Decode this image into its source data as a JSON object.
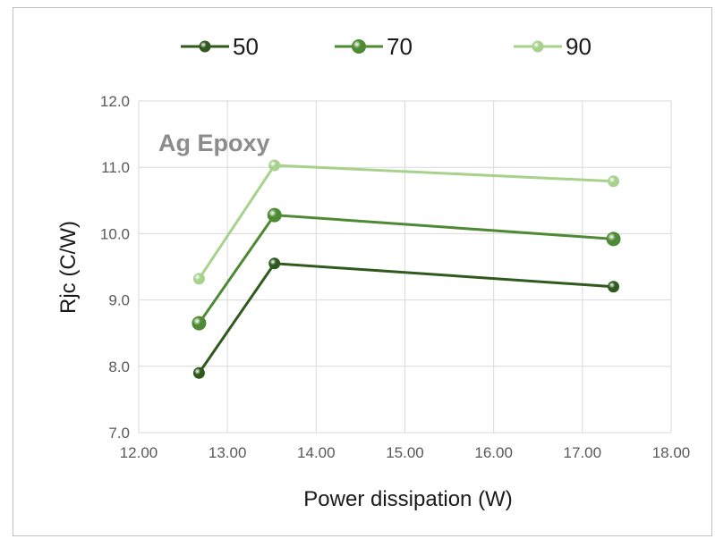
{
  "chart_data": {
    "type": "line",
    "title": "",
    "xlabel": "Power dissipation (W)",
    "ylabel": "Rjc (C/W)",
    "annotation": "Ag Epoxy",
    "xlim": [
      12.0,
      18.0
    ],
    "ylim": [
      7.0,
      12.0
    ],
    "x_ticks": [
      "12.00",
      "13.00",
      "14.00",
      "15.00",
      "16.00",
      "17.00",
      "18.00"
    ],
    "y_ticks": [
      "7.0",
      "8.0",
      "9.0",
      "10.0",
      "11.0",
      "12.0"
    ],
    "grid": true,
    "legend_position": "top",
    "series": [
      {
        "name": "50",
        "color": "#2f5a1e",
        "points": [
          [
            12.68,
            7.9
          ],
          [
            13.53,
            9.55
          ],
          [
            17.35,
            9.2
          ]
        ]
      },
      {
        "name": "70",
        "color": "#4e8a33",
        "points": [
          [
            12.68,
            8.65
          ],
          [
            13.53,
            10.28
          ],
          [
            17.35,
            9.92
          ]
        ]
      },
      {
        "name": "90",
        "color": "#a9d18e",
        "points": [
          [
            12.68,
            9.32
          ],
          [
            13.53,
            11.03
          ],
          [
            17.35,
            10.79
          ]
        ]
      }
    ]
  }
}
